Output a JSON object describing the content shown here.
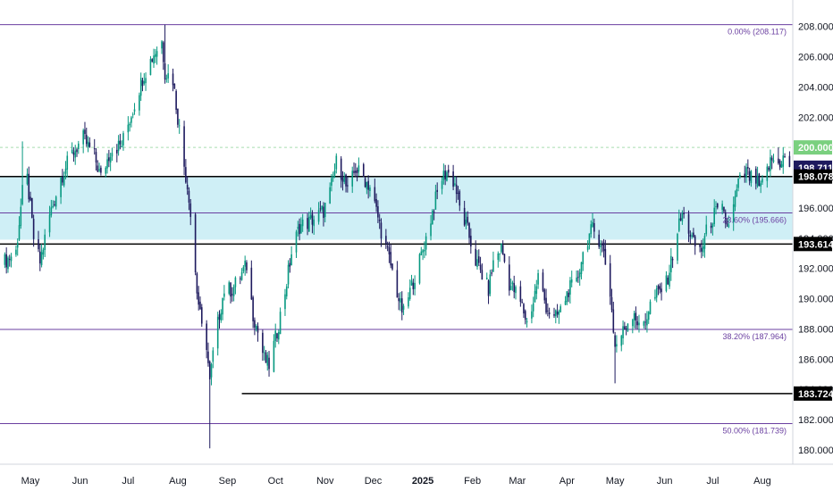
{
  "colors": {
    "up": "#089981",
    "down": "#1e1a5e",
    "band_fill": "#cfeff6",
    "fib_line": "#6a3fa0",
    "support_line": "#000000",
    "price_badge": "#1e1a5e",
    "level_badge": "#000000",
    "round_badge": "#7ad07f",
    "round_line": "#a8dcb0"
  },
  "chart_data": {
    "type": "candlestick",
    "title": "",
    "xlabel": "",
    "ylabel": "",
    "ylim": [
      179.05,
      209.75
    ],
    "y_ticks": [
      "180.000",
      "182.000",
      "184.000",
      "186.000",
      "188.000",
      "190.000",
      "192.000",
      "194.000",
      "196.000",
      "198.000",
      "200.000",
      "202.000",
      "204.000",
      "206.000",
      "208.000"
    ],
    "x_ticks": [
      {
        "label": "May",
        "date": "2024-05-01"
      },
      {
        "label": "Jun",
        "date": "2024-06-01"
      },
      {
        "label": "Jul",
        "date": "2024-07-01"
      },
      {
        "label": "Aug",
        "date": "2024-08-01"
      },
      {
        "label": "Sep",
        "date": "2024-09-01"
      },
      {
        "label": "Oct",
        "date": "2024-10-01"
      },
      {
        "label": "Nov",
        "date": "2024-11-01"
      },
      {
        "label": "Dec",
        "date": "2024-12-01"
      },
      {
        "label": "2025",
        "date": "2025-01-01",
        "bold": true
      },
      {
        "label": "Feb",
        "date": "2025-02-01"
      },
      {
        "label": "Mar",
        "date": "2025-03-01"
      },
      {
        "label": "Apr",
        "date": "2025-04-01"
      },
      {
        "label": "May",
        "date": "2025-05-01"
      },
      {
        "label": "Jun",
        "date": "2025-06-01"
      },
      {
        "label": "Jul",
        "date": "2025-07-01"
      },
      {
        "label": "Aug",
        "date": "2025-08-01"
      }
    ],
    "x_range": [
      "2024-04-12",
      "2025-08-20"
    ],
    "band": {
      "from": 193.9,
      "to": 198.078
    },
    "fib_levels": [
      {
        "label": "0.00% (208.117)",
        "value": 208.117
      },
      {
        "label": "23.60% (195.666)",
        "value": 195.666
      },
      {
        "label": "38.20% (187.964)",
        "value": 187.964
      },
      {
        "label": "50.00% (181.739)",
        "value": 181.739
      }
    ],
    "horizontal_levels": [
      {
        "label": "198.078",
        "value": 198.078,
        "start": "2024-04-12"
      },
      {
        "label": "193.614",
        "value": 193.614,
        "start": "2024-04-12"
      },
      {
        "label": "183.724",
        "value": 183.724,
        "start": "2024-09-10"
      }
    ],
    "round_level": {
      "label": "200.000",
      "value": 200.0
    },
    "last_price": {
      "label": "198.711",
      "value": 198.711
    },
    "anchors": [
      [
        "2024-04-12",
        192.2
      ],
      [
        "2024-04-22",
        193.1
      ],
      [
        "2024-04-26",
        197.0
      ],
      [
        "2024-04-29",
        197.9
      ],
      [
        "2024-05-03",
        194.0
      ],
      [
        "2024-05-07",
        192.4
      ],
      [
        "2024-05-13",
        195.5
      ],
      [
        "2024-05-20",
        198.0
      ],
      [
        "2024-05-27",
        199.6
      ],
      [
        "2024-06-03",
        200.6
      ],
      [
        "2024-06-10",
        199.4
      ],
      [
        "2024-06-14",
        198.0
      ],
      [
        "2024-06-20",
        199.8
      ],
      [
        "2024-06-27",
        200.2
      ],
      [
        "2024-07-03",
        202.2
      ],
      [
        "2024-07-10",
        204.6
      ],
      [
        "2024-07-17",
        206.2
      ],
      [
        "2024-07-22",
        207.0
      ],
      [
        "2024-07-24",
        205.0
      ],
      [
        "2024-07-29",
        204.5
      ],
      [
        "2024-08-01",
        202.0
      ],
      [
        "2024-08-05",
        198.8
      ],
      [
        "2024-08-08",
        196.8
      ],
      [
        "2024-08-13",
        190.5
      ],
      [
        "2024-08-16",
        188.0
      ],
      [
        "2024-08-19",
        187.0
      ],
      [
        "2024-08-21",
        184.4
      ],
      [
        "2024-08-23",
        186.3
      ],
      [
        "2024-08-27",
        189.0
      ],
      [
        "2024-08-30",
        190.6
      ],
      [
        "2024-09-04",
        190.6
      ],
      [
        "2024-09-09",
        191.5
      ],
      [
        "2024-09-13",
        192.2
      ],
      [
        "2024-09-17",
        189.0
      ],
      [
        "2024-09-20",
        187.8
      ],
      [
        "2024-09-24",
        186.0
      ],
      [
        "2024-09-27",
        185.6
      ],
      [
        "2024-10-02",
        187.8
      ],
      [
        "2024-10-07",
        190.5
      ],
      [
        "2024-10-11",
        193.0
      ],
      [
        "2024-10-16",
        194.8
      ],
      [
        "2024-10-21",
        195.0
      ],
      [
        "2024-10-25",
        195.3
      ],
      [
        "2024-10-31",
        195.8
      ],
      [
        "2024-11-04",
        197.0
      ],
      [
        "2024-11-08",
        199.0
      ],
      [
        "2024-11-12",
        198.2
      ],
      [
        "2024-11-15",
        197.0
      ],
      [
        "2024-11-20",
        198.6
      ],
      [
        "2024-11-25",
        198.0
      ],
      [
        "2024-11-29",
        197.4
      ],
      [
        "2024-12-03",
        195.8
      ],
      [
        "2024-12-06",
        194.5
      ],
      [
        "2024-12-10",
        193.0
      ],
      [
        "2024-12-13",
        191.8
      ],
      [
        "2024-12-18",
        189.5
      ],
      [
        "2024-12-20",
        189.0
      ],
      [
        "2024-12-24",
        190.5
      ],
      [
        "2024-12-30",
        192.5
      ],
      [
        "2025-01-03",
        194.0
      ],
      [
        "2025-01-08",
        196.2
      ],
      [
        "2025-01-13",
        198.0
      ],
      [
        "2025-01-16",
        198.4
      ],
      [
        "2025-01-21",
        197.6
      ],
      [
        "2025-01-24",
        196.0
      ],
      [
        "2025-01-29",
        194.5
      ],
      [
        "2025-02-03",
        192.5
      ],
      [
        "2025-02-06",
        191.8
      ],
      [
        "2025-02-11",
        190.6
      ],
      [
        "2025-02-14",
        192.4
      ],
      [
        "2025-02-19",
        193.4
      ],
      [
        "2025-02-24",
        191.0
      ],
      [
        "2025-02-28",
        190.4
      ],
      [
        "2025-03-04",
        189.5
      ],
      [
        "2025-03-07",
        188.4
      ],
      [
        "2025-03-11",
        189.8
      ],
      [
        "2025-03-14",
        191.5
      ],
      [
        "2025-03-19",
        189.5
      ],
      [
        "2025-03-24",
        188.6
      ],
      [
        "2025-03-28",
        189.2
      ],
      [
        "2025-04-02",
        190.6
      ],
      [
        "2025-04-07",
        191.0
      ],
      [
        "2025-04-10",
        192.6
      ],
      [
        "2025-04-14",
        194.0
      ],
      [
        "2025-04-17",
        194.6
      ],
      [
        "2025-04-22",
        193.8
      ],
      [
        "2025-04-24",
        193.0
      ],
      [
        "2025-04-28",
        190.4
      ],
      [
        "2025-05-01",
        186.8
      ],
      [
        "2025-05-05",
        187.6
      ],
      [
        "2025-05-08",
        188.3
      ],
      [
        "2025-05-13",
        189.2
      ],
      [
        "2025-05-16",
        188.0
      ],
      [
        "2025-05-20",
        188.6
      ],
      [
        "2025-05-23",
        189.6
      ],
      [
        "2025-05-28",
        190.4
      ],
      [
        "2025-06-02",
        191.0
      ],
      [
        "2025-06-05",
        192.4
      ],
      [
        "2025-06-09",
        194.5
      ],
      [
        "2025-06-12",
        195.6
      ],
      [
        "2025-06-16",
        194.6
      ],
      [
        "2025-06-19",
        193.6
      ],
      [
        "2025-06-24",
        193.2
      ],
      [
        "2025-06-27",
        194.4
      ],
      [
        "2025-07-02",
        195.6
      ],
      [
        "2025-07-07",
        195.8
      ],
      [
        "2025-07-10",
        194.8
      ],
      [
        "2025-07-14",
        196.0
      ],
      [
        "2025-07-17",
        197.6
      ],
      [
        "2025-07-22",
        198.4
      ],
      [
        "2025-07-24",
        198.0
      ],
      [
        "2025-07-28",
        197.8
      ],
      [
        "2025-07-31",
        197.2
      ],
      [
        "2025-08-04",
        198.5
      ],
      [
        "2025-08-07",
        199.2
      ],
      [
        "2025-08-11",
        198.9
      ],
      [
        "2025-08-14",
        199.3
      ],
      [
        "2025-08-18",
        198.711
      ]
    ],
    "spikes": [
      {
        "date": "2024-04-26",
        "high": 200.4
      },
      {
        "date": "2024-07-24",
        "high": 208.117
      },
      {
        "date": "2024-08-21",
        "low": 180.1
      },
      {
        "date": "2025-05-01",
        "low": 184.4
      },
      {
        "date": "2025-08-11",
        "high": 200.0
      }
    ]
  }
}
